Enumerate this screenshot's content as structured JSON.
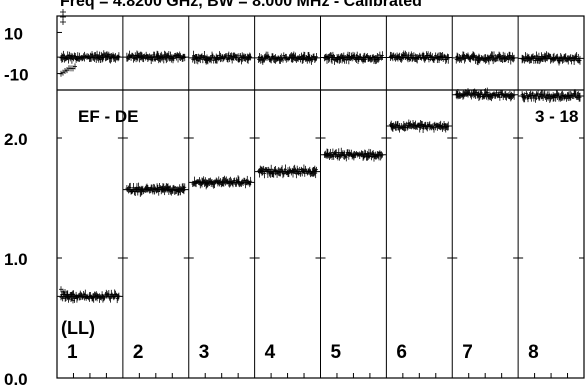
{
  "chart_data": {
    "type": "scatter",
    "title": "Freq = 4.8200 GHz, BW = 8.000 MHz - Calibrated",
    "top_panel": {
      "yticks": [
        "10",
        "-10"
      ],
      "ylim": [
        -18,
        18
      ],
      "series": [
        {
          "start": 0,
          "end": 1,
          "level": -2.0,
          "spread": 1.2,
          "lead_dip": true
        },
        {
          "start": 1,
          "end": 2,
          "level": -2.0,
          "spread": 1.2
        },
        {
          "start": 2,
          "end": 3,
          "level": -2.4,
          "spread": 1.2
        },
        {
          "start": 3,
          "end": 4,
          "level": -2.4,
          "spread": 1.2
        },
        {
          "start": 4,
          "end": 5,
          "level": -2.2,
          "spread": 1.2
        },
        {
          "start": 5,
          "end": 6,
          "level": -2.2,
          "spread": 1.2
        },
        {
          "start": 6,
          "end": 7,
          "level": -2.4,
          "spread": 1.2
        },
        {
          "start": 7,
          "end": 8,
          "level": -2.6,
          "spread": 1.2
        }
      ]
    },
    "bottom_panel": {
      "yticks": [
        "2.0",
        "1.0",
        "0.0"
      ],
      "ylim": [
        0,
        2.4
      ],
      "baseline_label": "EF - DE",
      "reference_label": "3 - 18",
      "panel_labels": [
        "1",
        "2",
        "3",
        "4",
        "5",
        "6",
        "7",
        "8"
      ],
      "first_panel_sublabel": "(LL)",
      "series": [
        {
          "panel": 1,
          "level": 0.68,
          "spread": 0.02,
          "lead_peak": 0.75
        },
        {
          "panel": 2,
          "level": 1.57,
          "spread": 0.02
        },
        {
          "panel": 3,
          "level": 1.63,
          "spread": 0.02
        },
        {
          "panel": 4,
          "level": 1.72,
          "spread": 0.02
        },
        {
          "panel": 5,
          "level": 1.86,
          "spread": 0.02
        },
        {
          "panel": 6,
          "level": 2.1,
          "spread": 0.02
        },
        {
          "panel": 7,
          "level": 2.36,
          "spread": 0.02
        },
        {
          "panel": 8,
          "level": 2.35,
          "spread": 0.02
        }
      ]
    },
    "grid": false
  }
}
